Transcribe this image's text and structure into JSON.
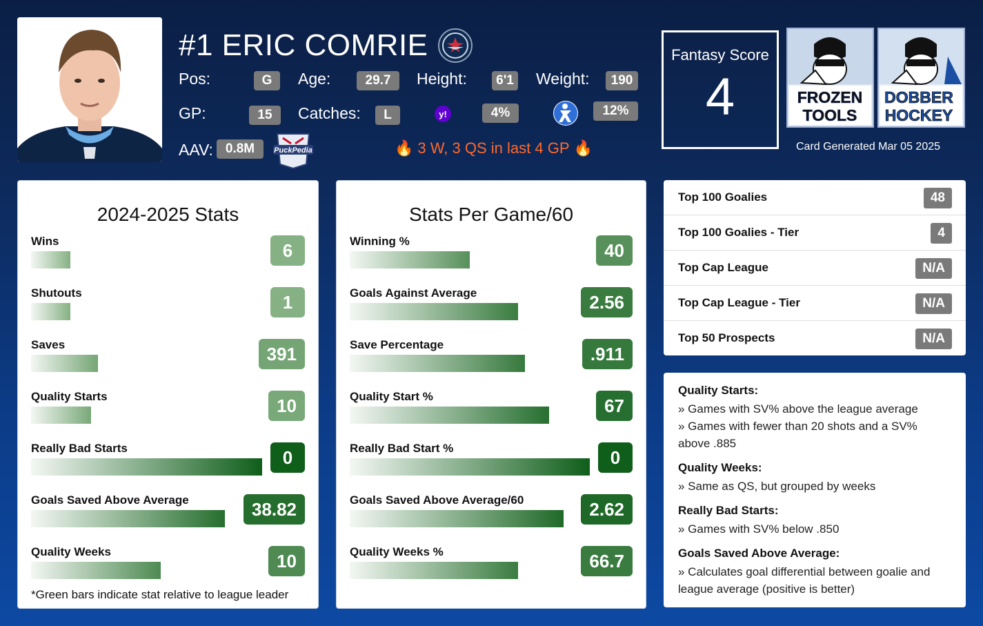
{
  "player": {
    "name": "#1 ERIC COMRIE",
    "pos_label": "Pos:",
    "pos": "G",
    "age_label": "Age:",
    "age": "29.7",
    "height_label": "Height:",
    "height": "6'1",
    "weight_label": "Weight:",
    "weight": "190",
    "gp_label": "GP:",
    "gp": "15",
    "catches_label": "Catches:",
    "catches": "L",
    "yahoo_pct": "4%",
    "espn_pct": "12%",
    "aav_label": "AAV:",
    "aav": "0.8M",
    "streak": "3 W, 3 QS in last 4 GP"
  },
  "fantasy": {
    "title": "Fantasy Score",
    "value": "4"
  },
  "brands": {
    "frozen": [
      "FROZEN",
      "TOOLS"
    ],
    "dobber": [
      "DOBBER",
      "HOCKEY"
    ]
  },
  "generated": "Card Generated Mar 05 2025",
  "season": {
    "title": "2024-2025 Stats",
    "stats": [
      {
        "label": "Wins",
        "value": "6",
        "fraction": 0.17
      },
      {
        "label": "Shutouts",
        "value": "1",
        "fraction": 0.17
      },
      {
        "label": "Saves",
        "value": "391",
        "fraction": 0.29
      },
      {
        "label": "Quality Starts",
        "value": "10",
        "fraction": 0.26
      },
      {
        "label": "Really Bad Starts",
        "value": "0",
        "fraction": 1.0
      },
      {
        "label": "Goals Saved Above Average",
        "value": "38.82",
        "fraction": 0.84
      },
      {
        "label": "Quality Weeks",
        "value": "10",
        "fraction": 0.56
      }
    ],
    "footnote": "*Green bars indicate stat relative to league leader"
  },
  "per_game": {
    "title": "Stats Per Game/60",
    "stats": [
      {
        "label": "Winning %",
        "value": "40",
        "fraction": 0.5
      },
      {
        "label": "Goals Against Average",
        "value": "2.56",
        "fraction": 0.7
      },
      {
        "label": "Save Percentage",
        "value": ".911",
        "fraction": 0.73
      },
      {
        "label": "Quality Start %",
        "value": "67",
        "fraction": 0.83
      },
      {
        "label": "Really Bad Start %",
        "value": "0",
        "fraction": 1.0
      },
      {
        "label": "Goals Saved Above Average/60",
        "value": "2.62",
        "fraction": 0.89
      },
      {
        "label": "Quality Weeks %",
        "value": "66.7",
        "fraction": 0.7
      }
    ]
  },
  "rankings": [
    {
      "label": "Top 100 Goalies",
      "value": "48"
    },
    {
      "label": "Top 100 Goalies - Tier",
      "value": "4"
    },
    {
      "label": "Top Cap League",
      "value": "N/A"
    },
    {
      "label": "Top Cap League - Tier",
      "value": "N/A"
    },
    {
      "label": "Top 50 Prospects",
      "value": "N/A"
    }
  ],
  "definitions": [
    {
      "heading": "Quality Starts:",
      "lines": [
        "» Games with SV% above the league average",
        "» Games with fewer than 20 shots and a SV% above .885"
      ]
    },
    {
      "heading": "Quality Weeks:",
      "lines": [
        "» Same as QS, but grouped by weeks"
      ]
    },
    {
      "heading": "Really Bad Starts:",
      "lines": [
        "» Games with SV% below .850"
      ]
    },
    {
      "heading": "Goals Saved Above Average:",
      "lines": [
        "» Calculates goal differential between goalie and league average (positive is better)"
      ]
    }
  ],
  "colors": {
    "dark_green": "#0f5e1a",
    "light_green": "#9ec29a",
    "pill_gray": "#7a7a7a",
    "streak_orange": "#ff6a2e"
  }
}
